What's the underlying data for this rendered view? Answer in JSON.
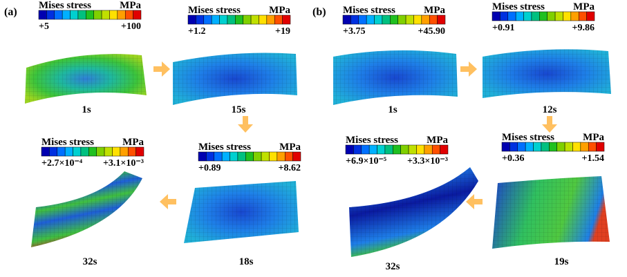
{
  "panels": [
    {
      "label": "(a)",
      "stages": [
        {
          "title": "Mises stress",
          "unit": "MPa",
          "min": "+5",
          "max": "+100",
          "time": "1s"
        },
        {
          "title": "Mises stress",
          "unit": "MPa",
          "min": "+1.2",
          "max": "+19",
          "time": "15s"
        },
        {
          "title": "Mises stress",
          "unit": "MPa",
          "min": "+0.89",
          "max": "+8.62",
          "time": "18s"
        },
        {
          "title": "Mises stress",
          "unit": "MPa",
          "min": "+2.7×10⁻⁴",
          "max": "+3.1×10⁻³",
          "time": "32s"
        }
      ]
    },
    {
      "label": "(b)",
      "stages": [
        {
          "title": "Mises stress",
          "unit": "MPa",
          "min": "+3.75",
          "max": "+45.90",
          "time": "1s"
        },
        {
          "title": "Mises stress",
          "unit": "MPa",
          "min": "+0.91",
          "max": "+9.86",
          "time": "12s"
        },
        {
          "title": "Mises stress",
          "unit": "MPa",
          "min": "+0.36",
          "max": "+1.54",
          "time": "19s"
        },
        {
          "title": "Mises stress",
          "unit": "MPa",
          "min": "+6.9×10⁻⁵",
          "max": "+3.3×10⁻³",
          "time": "32s"
        }
      ]
    }
  ]
}
